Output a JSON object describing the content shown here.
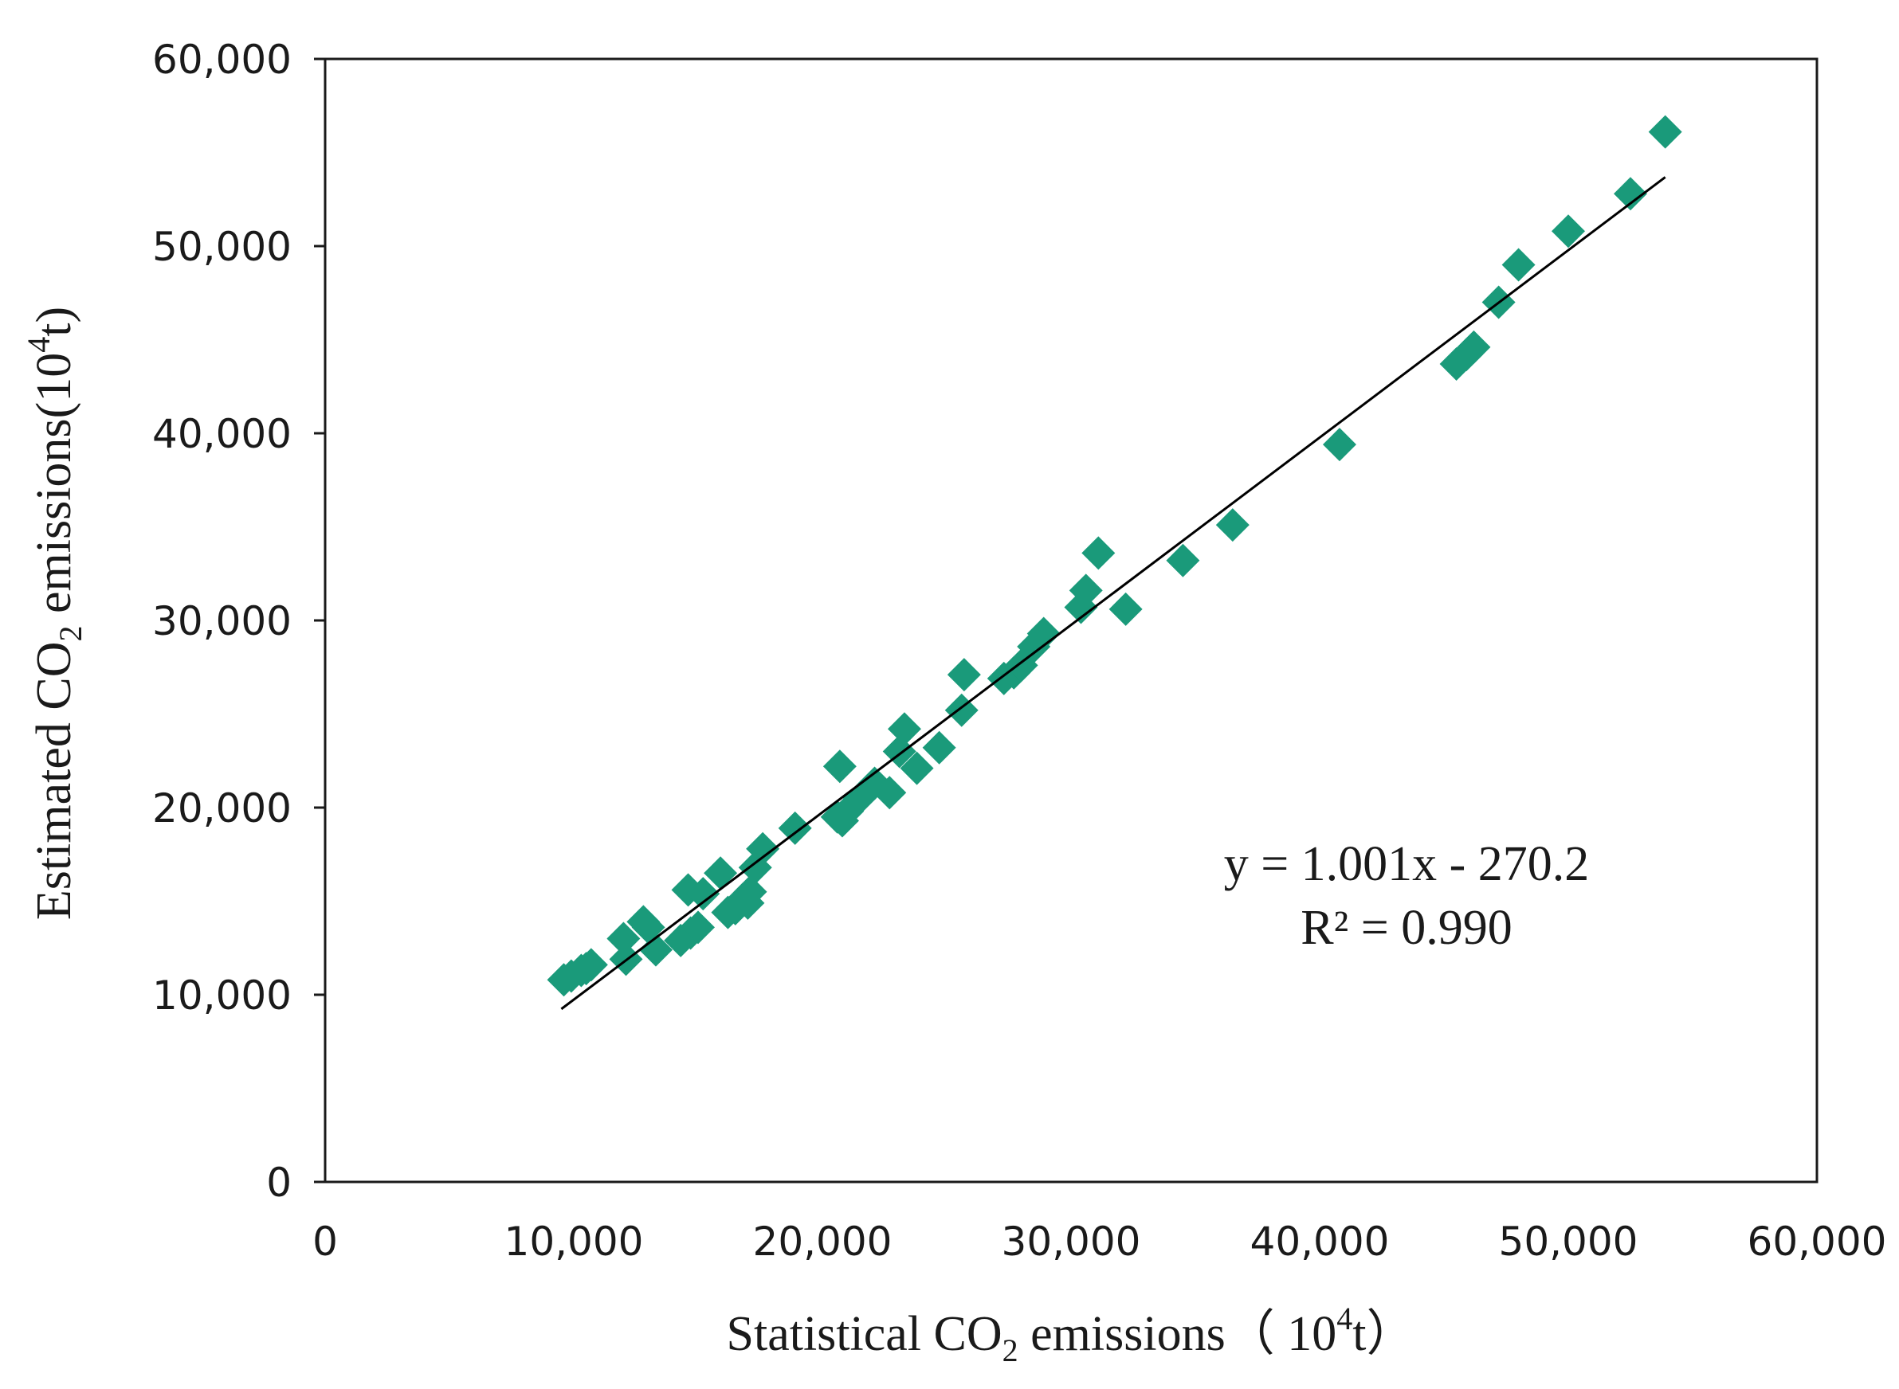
{
  "chart_data": {
    "type": "scatter",
    "title": "",
    "xlabel": {
      "prefix": "Statistical  CO",
      "sub": "2",
      "middle": " emissions（ 10",
      "sup": "4",
      "suffix": "t）"
    },
    "ylabel": {
      "prefix": "Estimated  CO",
      "sub": "2",
      "middle": "  emissions(10",
      "sup": "4",
      "suffix": "t)"
    },
    "xlim": [
      0,
      60000
    ],
    "ylim": [
      0,
      60000
    ],
    "x_ticks": [
      0,
      10000,
      20000,
      30000,
      40000,
      50000,
      60000
    ],
    "y_ticks": [
      0,
      10000,
      20000,
      30000,
      40000,
      50000,
      60000
    ],
    "x_tick_labels": [
      "0",
      "10,000",
      "20,000",
      "30,000",
      "40,000",
      "50,000",
      "60,000"
    ],
    "y_tick_labels": [
      "0",
      "10,000",
      "20,000",
      "30,000",
      "40,000",
      "50,000",
      "60,000"
    ],
    "grid": false,
    "marker_color": "#1a9a7a",
    "trendline": {
      "slope": 1.001,
      "intercept": -270.2,
      "x_range": [
        9500,
        53900
      ],
      "color": "#000000"
    },
    "annotations": [
      "y = 1.001x - 270.2",
      "R² = 0.990"
    ],
    "points": [
      [
        9600,
        10800
      ],
      [
        9900,
        11000
      ],
      [
        10300,
        11300
      ],
      [
        10500,
        11400
      ],
      [
        10700,
        11600
      ],
      [
        12000,
        13000
      ],
      [
        12100,
        11900
      ],
      [
        12800,
        13900
      ],
      [
        13000,
        13600
      ],
      [
        13300,
        12400
      ],
      [
        14300,
        12900
      ],
      [
        14600,
        15600
      ],
      [
        14700,
        13300
      ],
      [
        15000,
        13600
      ],
      [
        15200,
        15400
      ],
      [
        15900,
        16500
      ],
      [
        16200,
        14400
      ],
      [
        16500,
        14600
      ],
      [
        16800,
        15100
      ],
      [
        17000,
        14900
      ],
      [
        17100,
        15500
      ],
      [
        17300,
        16800
      ],
      [
        17600,
        17800
      ],
      [
        18900,
        18900
      ],
      [
        20600,
        19500
      ],
      [
        20800,
        19300
      ],
      [
        20700,
        22200
      ],
      [
        21000,
        19800
      ],
      [
        21500,
        20500
      ],
      [
        22100,
        21300
      ],
      [
        22700,
        20800
      ],
      [
        23100,
        23000
      ],
      [
        23300,
        24200
      ],
      [
        23800,
        22100
      ],
      [
        24700,
        23200
      ],
      [
        25600,
        25200
      ],
      [
        25700,
        27100
      ],
      [
        27300,
        26900
      ],
      [
        27700,
        27200
      ],
      [
        28000,
        27600
      ],
      [
        28500,
        28600
      ],
      [
        28900,
        29300
      ],
      [
        30400,
        30700
      ],
      [
        30600,
        31600
      ],
      [
        31100,
        33600
      ],
      [
        32200,
        30600
      ],
      [
        34500,
        33200
      ],
      [
        36500,
        35100
      ],
      [
        40800,
        39400
      ],
      [
        45500,
        43700
      ],
      [
        45900,
        44200
      ],
      [
        46200,
        44600
      ],
      [
        47200,
        47000
      ],
      [
        48000,
        49000
      ],
      [
        50000,
        50800
      ],
      [
        52500,
        52800
      ],
      [
        53900,
        56100
      ]
    ]
  }
}
